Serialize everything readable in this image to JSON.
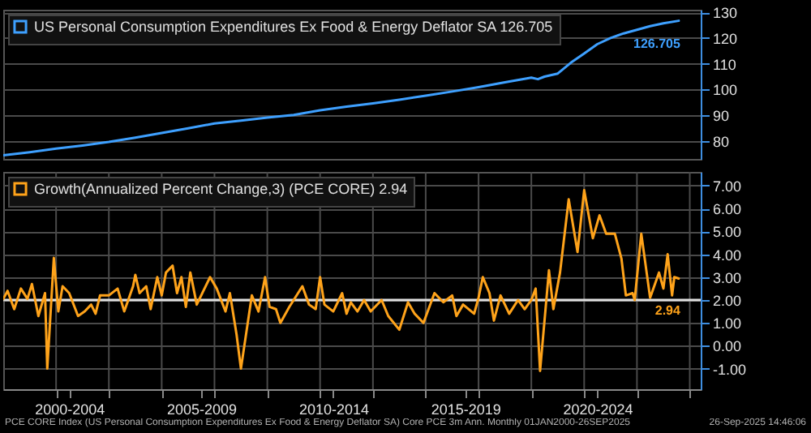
{
  "chart_data": [
    {
      "type": "line",
      "legend": "top left",
      "grid": "y",
      "tick_labels": "y",
      "xlim": [
        "2000-01",
        "2026-06"
      ],
      "ylim": [
        73,
        131
      ],
      "yticks": [
        80,
        90,
        100,
        110,
        120,
        130
      ],
      "series": [
        {
          "name": "US Personal Consumption Expenditures Ex Food & Energy Deflator SA 126.705",
          "color": "#3ea0ff",
          "x": [
            "2000-01",
            "2001-01",
            "2002-01",
            "2003-01",
            "2004-01",
            "2005-01",
            "2006-01",
            "2007-01",
            "2008-01",
            "2009-01",
            "2010-01",
            "2011-01",
            "2012-01",
            "2013-01",
            "2014-01",
            "2015-01",
            "2016-01",
            "2017-01",
            "2018-01",
            "2019-01",
            "2020-01",
            "2020-04",
            "2020-07",
            "2021-01",
            "2021-07",
            "2022-01",
            "2022-07",
            "2023-01",
            "2023-07",
            "2024-01",
            "2024-07",
            "2025-01",
            "2025-08"
          ],
          "values": [
            74.4,
            75.6,
            77.0,
            78.2,
            79.6,
            81.3,
            83.1,
            84.9,
            86.8,
            87.9,
            89.1,
            90.1,
            91.9,
            93.3,
            94.6,
            96.0,
            97.6,
            99.2,
            100.9,
            102.8,
            104.6,
            104.0,
            105.0,
            106.2,
            110.4,
            114.0,
            117.6,
            120.0,
            121.8,
            123.2,
            124.6,
            125.7,
            126.705
          ]
        }
      ],
      "annotations": [
        {
          "text": "126.705",
          "x": "2025-08",
          "y": 126.705
        }
      ]
    },
    {
      "type": "line",
      "legend": "top left",
      "grid": true,
      "xlim": [
        "2000-01",
        "2026-06"
      ],
      "ylim": [
        -1.9,
        7.6
      ],
      "xticks": [
        {
          "value": "2002-07",
          "label": "2000-2004"
        },
        {
          "value": "2007-07",
          "label": "2005-2009"
        },
        {
          "value": "2012-07",
          "label": "2010-2014"
        },
        {
          "value": "2017-07",
          "label": "2015-2019"
        },
        {
          "value": "2022-07",
          "label": "2020-2024"
        },
        {
          "value": "2002",
          "label": null
        },
        {
          "value": "2004",
          "label": null
        },
        {
          "value": "2006",
          "label": null
        },
        {
          "value": "2008",
          "label": null
        },
        {
          "value": "2010",
          "label": null
        },
        {
          "value": "2012",
          "label": null
        },
        {
          "value": "2014",
          "label": null
        },
        {
          "value": "2016",
          "label": null
        },
        {
          "value": "2018",
          "label": null
        },
        {
          "value": "2020",
          "label": null
        },
        {
          "value": "2022",
          "label": null
        },
        {
          "value": "2024",
          "label": null
        },
        {
          "value": "2026",
          "label": null
        }
      ],
      "yticks": [
        {
          "value": -1,
          "label": "-1.00"
        },
        {
          "value": 0,
          "label": "0.00"
        },
        {
          "value": 1,
          "label": "1.00"
        },
        {
          "value": 2,
          "label": "2.00"
        },
        {
          "value": 3,
          "label": "3.00"
        },
        {
          "value": 4,
          "label": "4.00"
        },
        {
          "value": 5,
          "label": "5.00"
        },
        {
          "value": 6,
          "label": "6.00"
        },
        {
          "value": 7,
          "label": "7.00"
        }
      ],
      "ref_lines": [
        {
          "axis": "y",
          "value": 2,
          "color": "#e0e0e0"
        }
      ],
      "series": [
        {
          "name": "Growth(Annualized Percent Change,3) (PCE CORE) 2.94",
          "color": "#ffa31a",
          "x": [
            "2000-01",
            "2000-03",
            "2000-06",
            "2000-09",
            "2000-12",
            "2001-02",
            "2001-05",
            "2001-08",
            "2001-09",
            "2001-12",
            "2002-02",
            "2002-04",
            "2002-07",
            "2002-11",
            "2003-02",
            "2003-05",
            "2003-07",
            "2003-09",
            "2004-01",
            "2004-05",
            "2004-08",
            "2004-12",
            "2005-01",
            "2005-03",
            "2005-06",
            "2005-08",
            "2005-11",
            "2006-01",
            "2006-03",
            "2006-06",
            "2006-08",
            "2006-10",
            "2006-12",
            "2007-02",
            "2007-05",
            "2007-08",
            "2007-11",
            "2008-02",
            "2008-06",
            "2008-08",
            "2008-11",
            "2009-01",
            "2009-06",
            "2009-09",
            "2009-12",
            "2010-02",
            "2010-05",
            "2010-07",
            "2010-11",
            "2011-01",
            "2011-05",
            "2011-08",
            "2011-11",
            "2012-01",
            "2012-03",
            "2012-07",
            "2012-11",
            "2013-01",
            "2013-03",
            "2013-06",
            "2013-09",
            "2013-12",
            "2014-05",
            "2014-08",
            "2015-01",
            "2015-05",
            "2015-08",
            "2015-12",
            "2016-05",
            "2016-09",
            "2017-01",
            "2017-03",
            "2017-06",
            "2017-11",
            "2018-01",
            "2018-03",
            "2018-06",
            "2018-08",
            "2018-11",
            "2019-03",
            "2019-07",
            "2019-10",
            "2020-01",
            "2020-03",
            "2020-05",
            "2020-09",
            "2020-11",
            "2021-02",
            "2021-06",
            "2021-10",
            "2022-01",
            "2022-05",
            "2022-08",
            "2022-11",
            "2023-03",
            "2023-06",
            "2023-08",
            "2023-11",
            "2023-12",
            "2024-03",
            "2024-07",
            "2024-11",
            "2025-01",
            "2025-03",
            "2025-05",
            "2025-06",
            "2025-08"
          ],
          "values": [
            2.05,
            2.4,
            1.6,
            2.5,
            2.05,
            2.7,
            1.3,
            2.3,
            -1.0,
            3.84,
            1.5,
            2.6,
            2.3,
            1.3,
            1.5,
            1.8,
            1.4,
            2.2,
            2.2,
            2.5,
            1.5,
            2.6,
            3.1,
            2.3,
            2.6,
            1.6,
            3.0,
            2.2,
            3.2,
            3.5,
            2.3,
            3.0,
            1.7,
            3.2,
            1.8,
            2.4,
            3.0,
            2.5,
            1.5,
            2.3,
            0.5,
            -1.0,
            2.2,
            1.5,
            3.0,
            1.7,
            1.6,
            1.0,
            1.7,
            2.0,
            2.6,
            1.8,
            1.6,
            3.0,
            1.8,
            1.5,
            2.3,
            1.4,
            1.9,
            1.5,
            2.0,
            1.5,
            2.0,
            1.3,
            0.7,
            1.9,
            1.4,
            1.0,
            2.3,
            1.9,
            2.2,
            1.3,
            1.8,
            1.4,
            2.1,
            3.0,
            2.3,
            1.1,
            2.2,
            1.4,
            2.0,
            1.6,
            2.0,
            2.5,
            -1.1,
            3.3,
            1.6,
            3.2,
            6.4,
            4.1,
            6.8,
            4.7,
            5.7,
            4.9,
            4.9,
            3.8,
            2.2,
            2.3,
            2.0,
            4.9,
            2.1,
            3.2,
            2.5,
            4.0,
            2.2,
            3.0,
            2.94
          ]
        }
      ],
      "annotations": [
        {
          "text": "2.94",
          "x": "2025-08",
          "y": 2.94
        },
        "PCE CORE Index (US Personal Consumption Expenditures Ex Food & Energy Deflator SA) Core PCE 3m Ann.  Monthly 01JAN2000-26SEP2025",
        "26-Sep-2025 14:46:06"
      ]
    }
  ]
}
